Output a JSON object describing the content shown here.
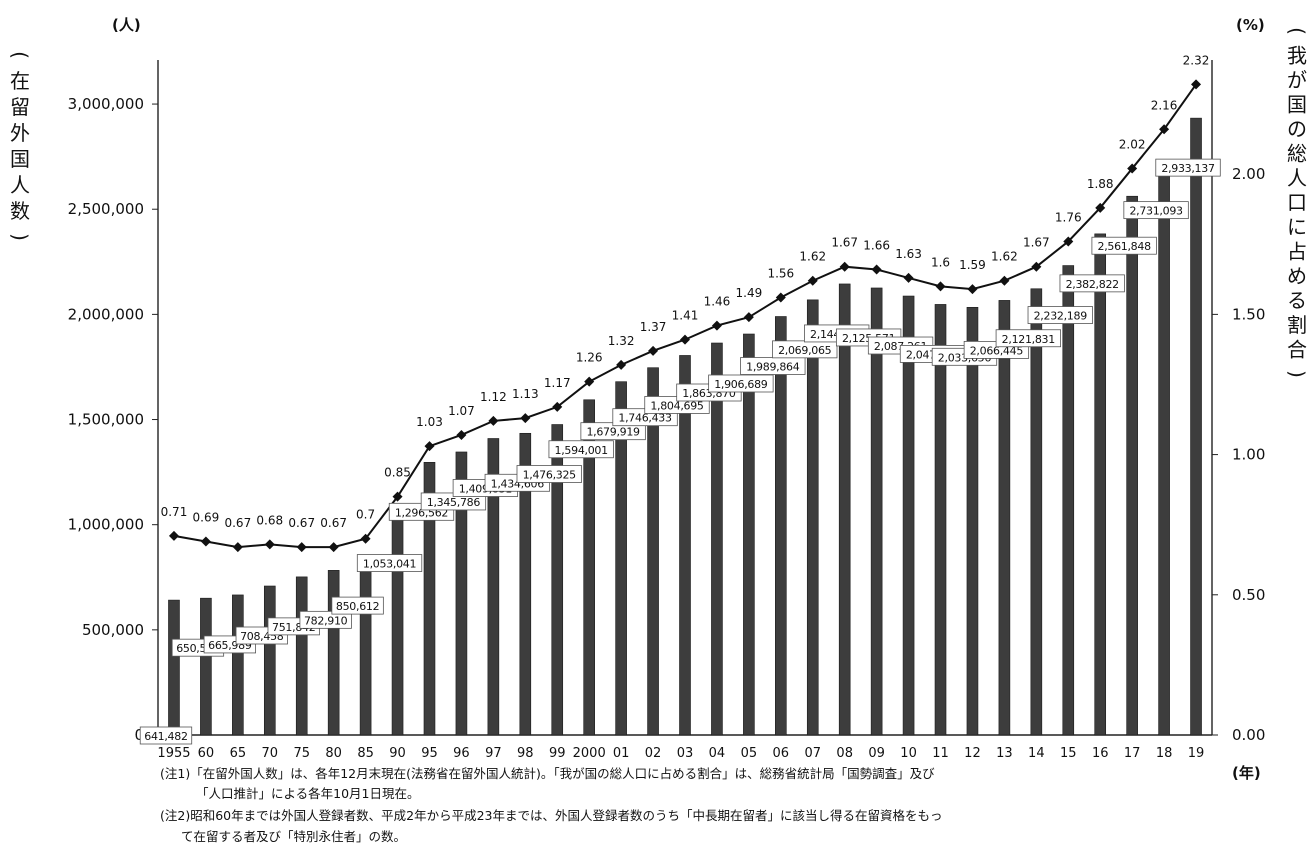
{
  "chart_data": {
    "type": "bar",
    "left_unit": "(人)",
    "right_unit": "(%)",
    "x_unit": "(年)",
    "left_axis_label": "(在留外国人数)",
    "right_axis_label": "(我が国の総人口に占める割合)",
    "left_ylim": [
      0,
      3200000
    ],
    "right_ylim": [
      0,
      2.4
    ],
    "left_ticks": [
      "0",
      "500,000",
      "1,000,000",
      "1,500,000",
      "2,000,000",
      "2,500,000",
      "3,000,000"
    ],
    "left_tick_values": [
      0,
      500000,
      1000000,
      1500000,
      2000000,
      2500000,
      3000000
    ],
    "right_ticks": [
      "0.00",
      "0.50",
      "1.00",
      "1.50",
      "2.00"
    ],
    "right_tick_values": [
      0,
      0.5,
      1.0,
      1.5,
      2.0
    ],
    "categories": [
      "1955",
      "60",
      "65",
      "70",
      "75",
      "80",
      "85",
      "90",
      "95",
      "96",
      "97",
      "98",
      "99",
      "2000",
      "01",
      "02",
      "03",
      "04",
      "05",
      "06",
      "07",
      "08",
      "09",
      "10",
      "11",
      "12",
      "13",
      "14",
      "15",
      "16",
      "17",
      "18",
      "19"
    ],
    "series": [
      {
        "type": "bar",
        "values": [
          641482,
          650566,
          665989,
          708458,
          751842,
          782910,
          850612,
          1053041,
          1296562,
          1345786,
          1409831,
          1434606,
          1476325,
          1594001,
          1679919,
          1746433,
          1804695,
          1863870,
          1906689,
          1989864,
          2069065,
          2144682,
          2125571,
          2087261,
          2047349,
          2033656,
          2066445,
          2121831,
          2232189,
          2382822,
          2561848,
          2731093,
          2933137
        ],
        "labels": [
          "641,482",
          "650,566",
          "665,989",
          "708,458",
          "751,842",
          "782,910",
          "850,612",
          "1,053,041",
          "1,296,562",
          "1,345,786",
          "1,409,831",
          "1,434,606",
          "1,476,325",
          "1,594,001",
          "1,679,919",
          "1,746,433",
          "1,804,695",
          "1,863,870",
          "1,906,689",
          "1,989,864",
          "2,069,065",
          "2,144,682",
          "2,125,571",
          "2,087,261",
          "2,047,349",
          "2,033,656",
          "2,066,445",
          "2,121,831",
          "2,232,189",
          "2,382,822",
          "2,561,848",
          "2,731,093",
          "2,933,137"
        ]
      },
      {
        "type": "line",
        "axis": "right",
        "values": [
          0.71,
          0.69,
          0.67,
          0.68,
          0.67,
          0.67,
          0.7,
          0.85,
          1.03,
          1.07,
          1.12,
          1.13,
          1.17,
          1.26,
          1.32,
          1.37,
          1.41,
          1.46,
          1.49,
          1.56,
          1.62,
          1.67,
          1.66,
          1.63,
          1.6,
          1.59,
          1.62,
          1.67,
          1.76,
          1.88,
          2.02,
          2.16,
          2.32
        ],
        "labels": [
          "0.71",
          "0.69",
          "0.67",
          "0.68",
          "0.67",
          "0.67",
          "0.7",
          "0.85",
          "1.03",
          "1.07",
          "1.12",
          "1.13",
          "1.17",
          "1.26",
          "1.32",
          "1.37",
          "1.41",
          "1.46",
          "1.49",
          "1.56",
          "1.62",
          "1.67",
          "1.66",
          "1.63",
          "1.6",
          "1.59",
          "1.62",
          "1.67",
          "1.76",
          "1.88",
          "2.02",
          "2.16",
          "2.32"
        ]
      }
    ],
    "notes": [
      "(注1)「在留外国人数」は、各年12月末現在(法務省在留外国人統計)。「我が国の総人口に占める割合」は、総務省統計局「国勢調査」及び",
      "「人口推計」による各年10月1日現在。",
      "(注2)昭和60年までは外国人登録者数、平成2年から平成23年までは、外国人登録者数のうち「中長期在留者」に該当し得る在留資格をもっ",
      "て在留する者及び「特別永住者」の数。"
    ]
  }
}
